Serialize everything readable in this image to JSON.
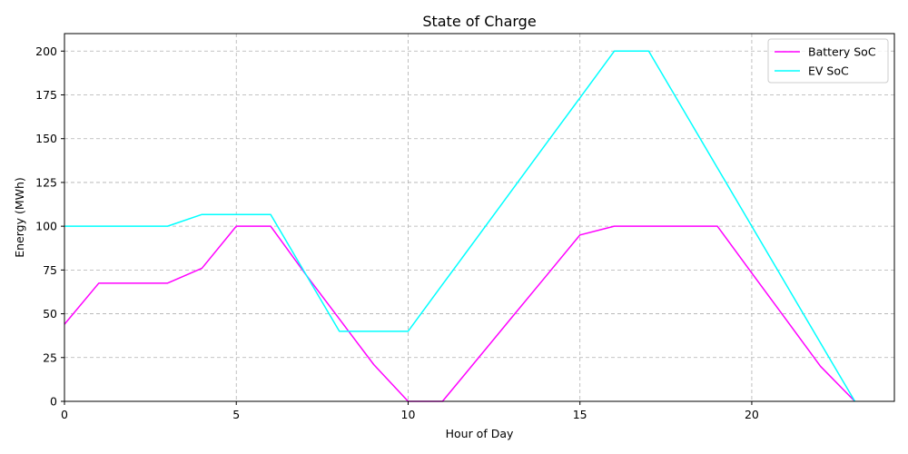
{
  "chart_data": {
    "type": "line",
    "title": "State of Charge",
    "xlabel": "Hour of Day",
    "ylabel": "Energy (MWh)",
    "xlim": [
      0,
      24.15
    ],
    "ylim": [
      0,
      210
    ],
    "xticks": [
      0,
      5,
      10,
      15,
      20
    ],
    "yticks": [
      0,
      25,
      50,
      75,
      100,
      125,
      150,
      175,
      200
    ],
    "grid": true,
    "legend_position": "top-right",
    "x": [
      0,
      1,
      2,
      3,
      4,
      5,
      6,
      7,
      8,
      9,
      10,
      11,
      12,
      13,
      14,
      15,
      16,
      17,
      18,
      19,
      20,
      21,
      22,
      23
    ],
    "series": [
      {
        "name": "Battery SoC",
        "color": "#ff00ff",
        "values": [
          44,
          67.5,
          67.5,
          67.5,
          76,
          100,
          100,
          73,
          47,
          21,
          0,
          0,
          23.7,
          47.5,
          71.2,
          95,
          100,
          100,
          100,
          100,
          73.3,
          46.7,
          20,
          0
        ]
      },
      {
        "name": "EV SoC",
        "color": "#00ffff",
        "values": [
          100,
          100,
          100,
          100,
          106.7,
          106.7,
          106.7,
          73.3,
          40,
          40,
          40,
          66.7,
          93.3,
          120,
          146.7,
          173.3,
          200,
          200,
          166.7,
          133.3,
          100,
          66.7,
          33.3,
          0
        ]
      }
    ]
  }
}
